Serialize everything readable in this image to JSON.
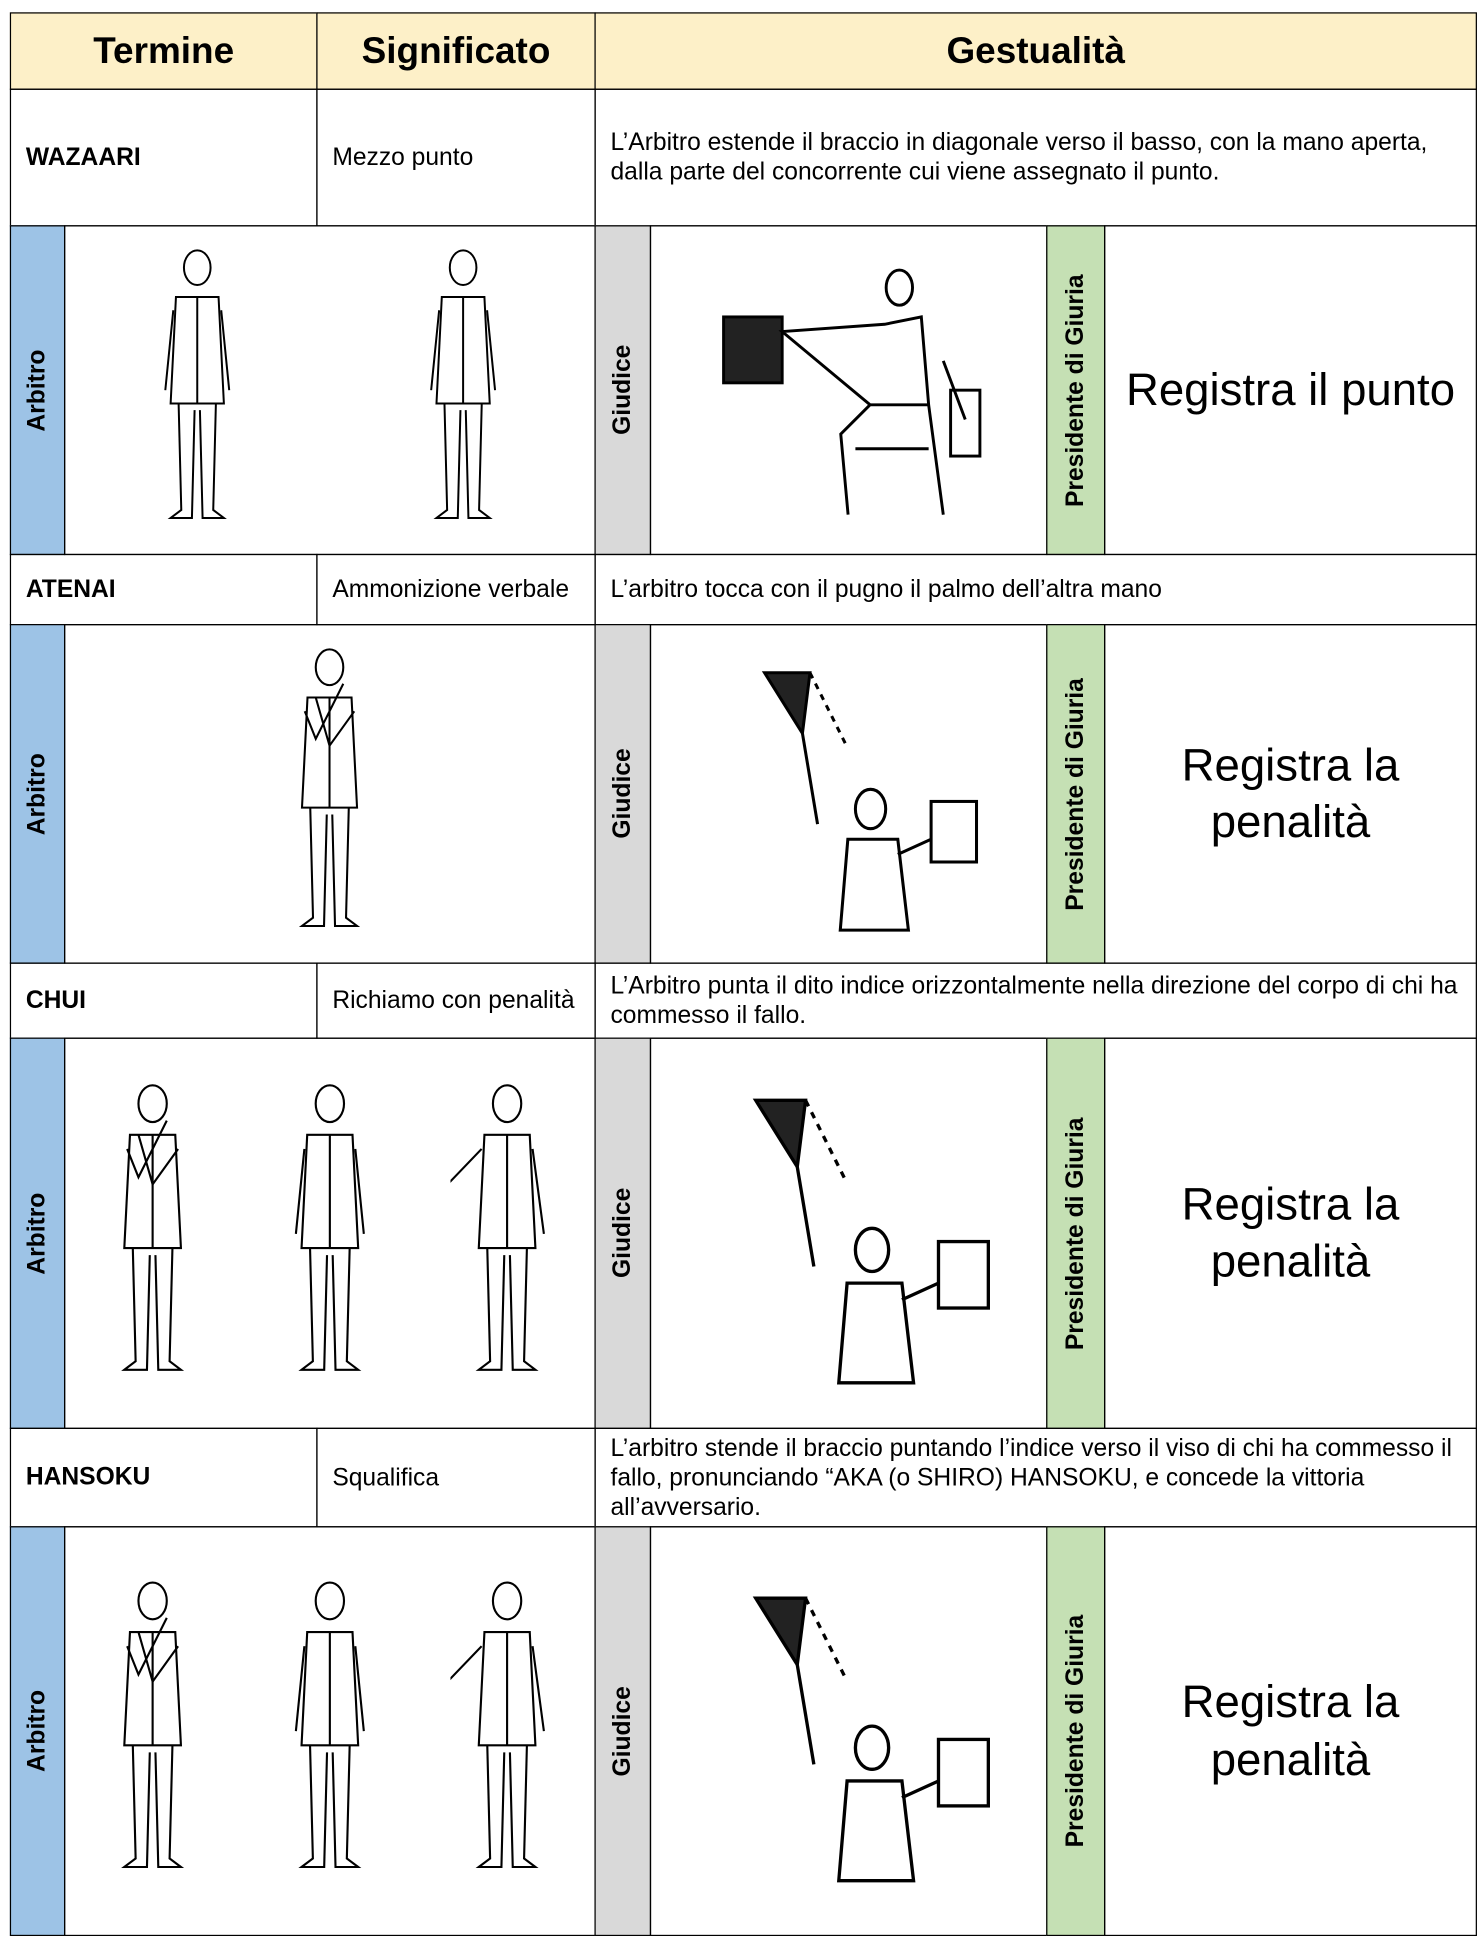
{
  "header": {
    "term": "Termine",
    "meaning": "Significato",
    "gesture": "Gestualità"
  },
  "rows": [
    {
      "term": "WAZAARI",
      "meaning": "Mezzo punto",
      "gesture": "L’Arbitro estende il braccio in diagonale verso il basso, con la mano aperta, dalla parte del concorrente cui viene assegnato il punto.",
      "referee_label": "Arbitro",
      "judge_label": "Giudice",
      "president_label": "Presidente di Giuria",
      "president_action": "Registra il punto"
    },
    {
      "term": "ATENAI",
      "meaning": "Ammonizione verbale",
      "gesture": "L’arbitro tocca con il pugno il palmo dell’altra mano",
      "referee_label": "Arbitro",
      "judge_label": "Giudice",
      "president_label": "Presidente di Giuria",
      "president_action": "Registra la penalità"
    },
    {
      "term": "CHUI",
      "meaning": "Richiamo con penalità",
      "gesture": "L’Arbitro punta il dito indice orizzontalmente nella direzione del corpo di chi ha commesso il fallo.",
      "referee_label": "Arbitro",
      "judge_label": "Giudice",
      "president_label": "Presidente di Giuria",
      "president_action": "Registra la penalità"
    },
    {
      "term": "HANSOKU",
      "meaning": "Squalifica",
      "gesture": "L’arbitro stende il braccio puntando l’indice verso il viso di chi ha commesso il fallo, pronunciando “AKA (o SHIRO) HANSOKU, e concede la vittoria all’avversario.",
      "referee_label": "Arbitro",
      "judge_label": "Giudice",
      "president_label": "Presidente di Giuria",
      "president_action": "Registra la penalità"
    }
  ]
}
